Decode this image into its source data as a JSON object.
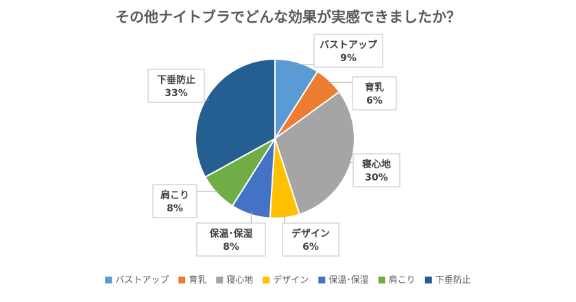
{
  "chart_data": {
    "type": "pie",
    "title": "その他ナイトブラでどんな効果が実感できましたか？",
    "categories": [
      "バストアップ",
      "育乳",
      "寝心地",
      "デザイン",
      "保温･保湿",
      "肩こり",
      "下垂防止"
    ],
    "values": [
      9,
      6,
      30,
      6,
      8,
      8,
      33
    ],
    "value_labels": [
      "9%",
      "6%",
      "30%",
      "6%",
      "8%",
      "8%",
      "33%"
    ],
    "colors": [
      "#5B9BD5",
      "#ED7D31",
      "#A5A5A5",
      "#FFC000",
      "#4472C4",
      "#70AD47",
      "#255E91"
    ],
    "unit": "%",
    "legend": {
      "position": "bottom"
    }
  }
}
